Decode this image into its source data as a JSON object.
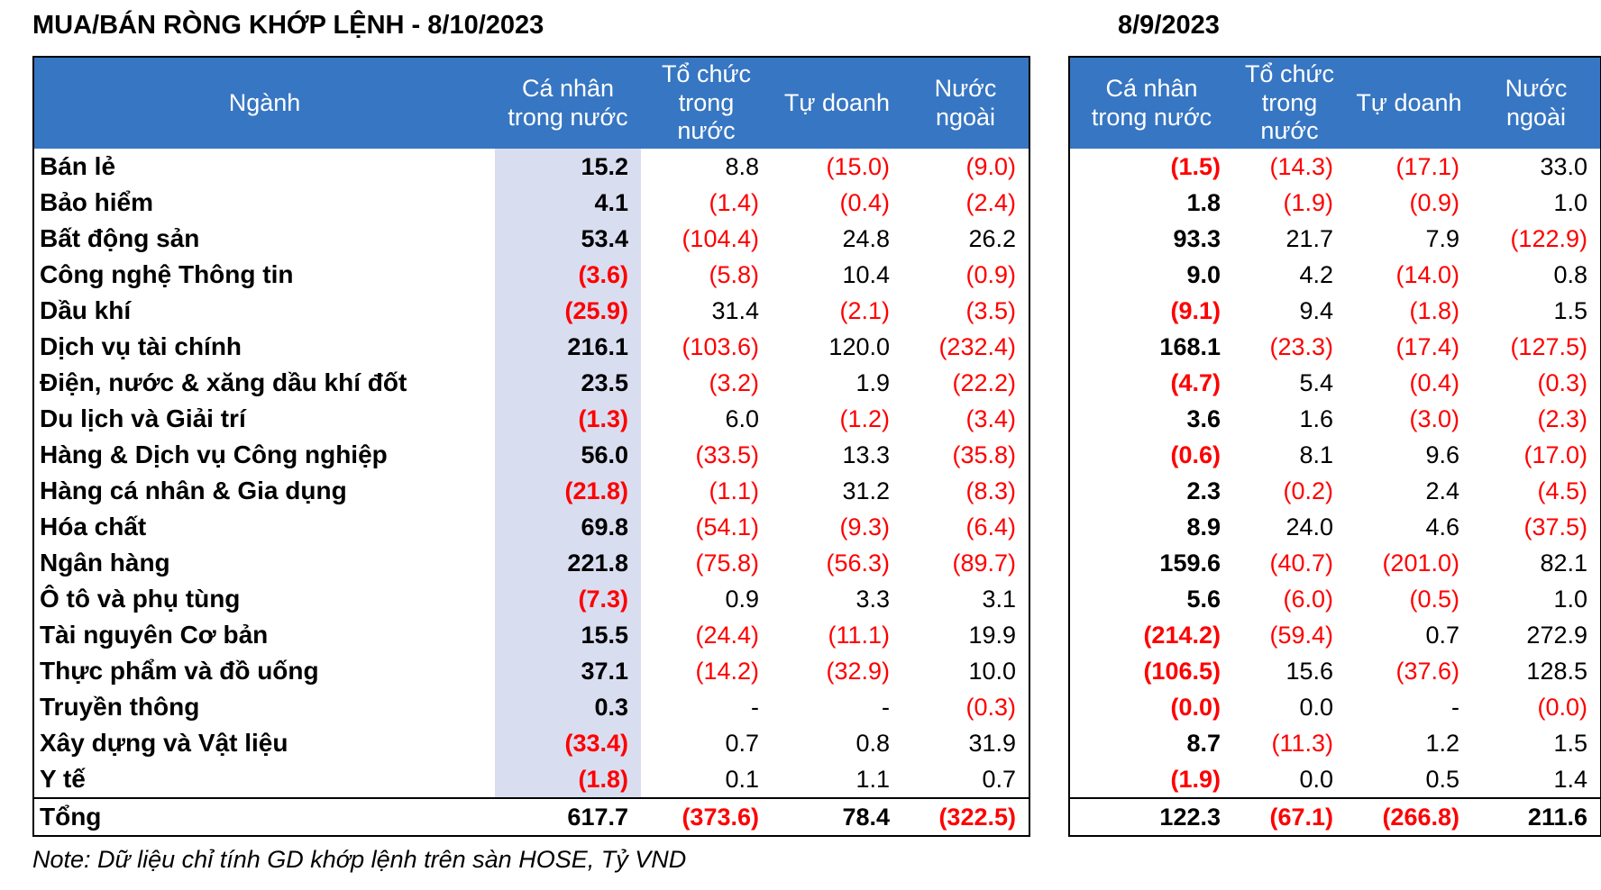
{
  "titles": {
    "left": "MUA/BÁN RÒNG KHỚP LỆNH - 8/10/2023",
    "right": "8/9/2023"
  },
  "note": "Note: Dữ liệu chỉ tính GD khớp lệnh trên sàn HOSE, Tỷ VND",
  "table": {
    "industry_header": "Ngành",
    "columns": [
      "Cá nhân trong nước",
      "Tổ chức trong nước",
      "Tự doanh",
      "Nước ngoài"
    ],
    "total_label": "Tổng",
    "rows": [
      {
        "nganh": "Bán lẻ",
        "left": [
          "15.2",
          "8.8",
          "(15.0)",
          "(9.0)"
        ],
        "right": [
          "(1.5)",
          "(14.3)",
          "(17.1)",
          "33.0"
        ]
      },
      {
        "nganh": "Bảo hiểm",
        "left": [
          "4.1",
          "(1.4)",
          "(0.4)",
          "(2.4)"
        ],
        "right": [
          "1.8",
          "(1.9)",
          "(0.9)",
          "1.0"
        ]
      },
      {
        "nganh": "Bất động sản",
        "left": [
          "53.4",
          "(104.4)",
          "24.8",
          "26.2"
        ],
        "right": [
          "93.3",
          "21.7",
          "7.9",
          "(122.9)"
        ]
      },
      {
        "nganh": "Công nghệ Thông tin",
        "left": [
          "(3.6)",
          "(5.8)",
          "10.4",
          "(0.9)"
        ],
        "right": [
          "9.0",
          "4.2",
          "(14.0)",
          "0.8"
        ]
      },
      {
        "nganh": "Dầu khí",
        "left": [
          "(25.9)",
          "31.4",
          "(2.1)",
          "(3.5)"
        ],
        "right": [
          "(9.1)",
          "9.4",
          "(1.8)",
          "1.5"
        ]
      },
      {
        "nganh": "Dịch vụ tài chính",
        "left": [
          "216.1",
          "(103.6)",
          "120.0",
          "(232.4)"
        ],
        "right": [
          "168.1",
          "(23.3)",
          "(17.4)",
          "(127.5)"
        ]
      },
      {
        "nganh": "Điện, nước & xăng dầu khí đốt",
        "left": [
          "23.5",
          "(3.2)",
          "1.9",
          "(22.2)"
        ],
        "right": [
          "(4.7)",
          "5.4",
          "(0.4)",
          "(0.3)"
        ]
      },
      {
        "nganh": "Du lịch và Giải trí",
        "left": [
          "(1.3)",
          "6.0",
          "(1.2)",
          "(3.4)"
        ],
        "right": [
          "3.6",
          "1.6",
          "(3.0)",
          "(2.3)"
        ]
      },
      {
        "nganh": "Hàng & Dịch vụ Công nghiệp",
        "left": [
          "56.0",
          "(33.5)",
          "13.3",
          "(35.8)"
        ],
        "right": [
          "(0.6)",
          "8.1",
          "9.6",
          "(17.0)"
        ]
      },
      {
        "nganh": "Hàng cá nhân & Gia dụng",
        "left": [
          "(21.8)",
          "(1.1)",
          "31.2",
          "(8.3)"
        ],
        "right": [
          "2.3",
          "(0.2)",
          "2.4",
          "(4.5)"
        ]
      },
      {
        "nganh": "Hóa chất",
        "left": [
          "69.8",
          "(54.1)",
          "(9.3)",
          "(6.4)"
        ],
        "right": [
          "8.9",
          "24.0",
          "4.6",
          "(37.5)"
        ]
      },
      {
        "nganh": "Ngân hàng",
        "left": [
          "221.8",
          "(75.8)",
          "(56.3)",
          "(89.7)"
        ],
        "right": [
          "159.6",
          "(40.7)",
          "(201.0)",
          "82.1"
        ]
      },
      {
        "nganh": "Ô tô và phụ tùng",
        "left": [
          "(7.3)",
          "0.9",
          "3.3",
          "3.1"
        ],
        "right": [
          "5.6",
          "(6.0)",
          "(0.5)",
          "1.0"
        ]
      },
      {
        "nganh": "Tài nguyên Cơ bản",
        "left": [
          "15.5",
          "(24.4)",
          "(11.1)",
          "19.9"
        ],
        "right": [
          "(214.2)",
          "(59.4)",
          "0.7",
          "272.9"
        ]
      },
      {
        "nganh": "Thực phẩm và đồ uống",
        "left": [
          "37.1",
          "(14.2)",
          "(32.9)",
          "10.0"
        ],
        "right": [
          "(106.5)",
          "15.6",
          "(37.6)",
          "128.5"
        ]
      },
      {
        "nganh": "Truyền thông",
        "left": [
          "0.3",
          "-",
          "-",
          "(0.3)"
        ],
        "right": [
          "(0.0)",
          "0.0",
          "-",
          "(0.0)"
        ]
      },
      {
        "nganh": "Xây dựng và Vật liệu",
        "left": [
          "(33.4)",
          "0.7",
          "0.8",
          "31.9"
        ],
        "right": [
          "8.7",
          "(11.3)",
          "1.2",
          "1.5"
        ]
      },
      {
        "nganh": "Y tế",
        "left": [
          "(1.8)",
          "0.1",
          "1.1",
          "0.7"
        ],
        "right": [
          "(1.9)",
          "0.0",
          "0.5",
          "1.4"
        ]
      }
    ],
    "totals": {
      "left": [
        "617.7",
        "(373.6)",
        "78.4",
        "(322.5)"
      ],
      "right": [
        "122.3",
        "(67.1)",
        "(266.8)",
        "211.6"
      ]
    }
  },
  "colors": {
    "header_bg": "#3776c2",
    "highlight_col_bg": "#d9ddf0",
    "negative": "#fe0000"
  }
}
